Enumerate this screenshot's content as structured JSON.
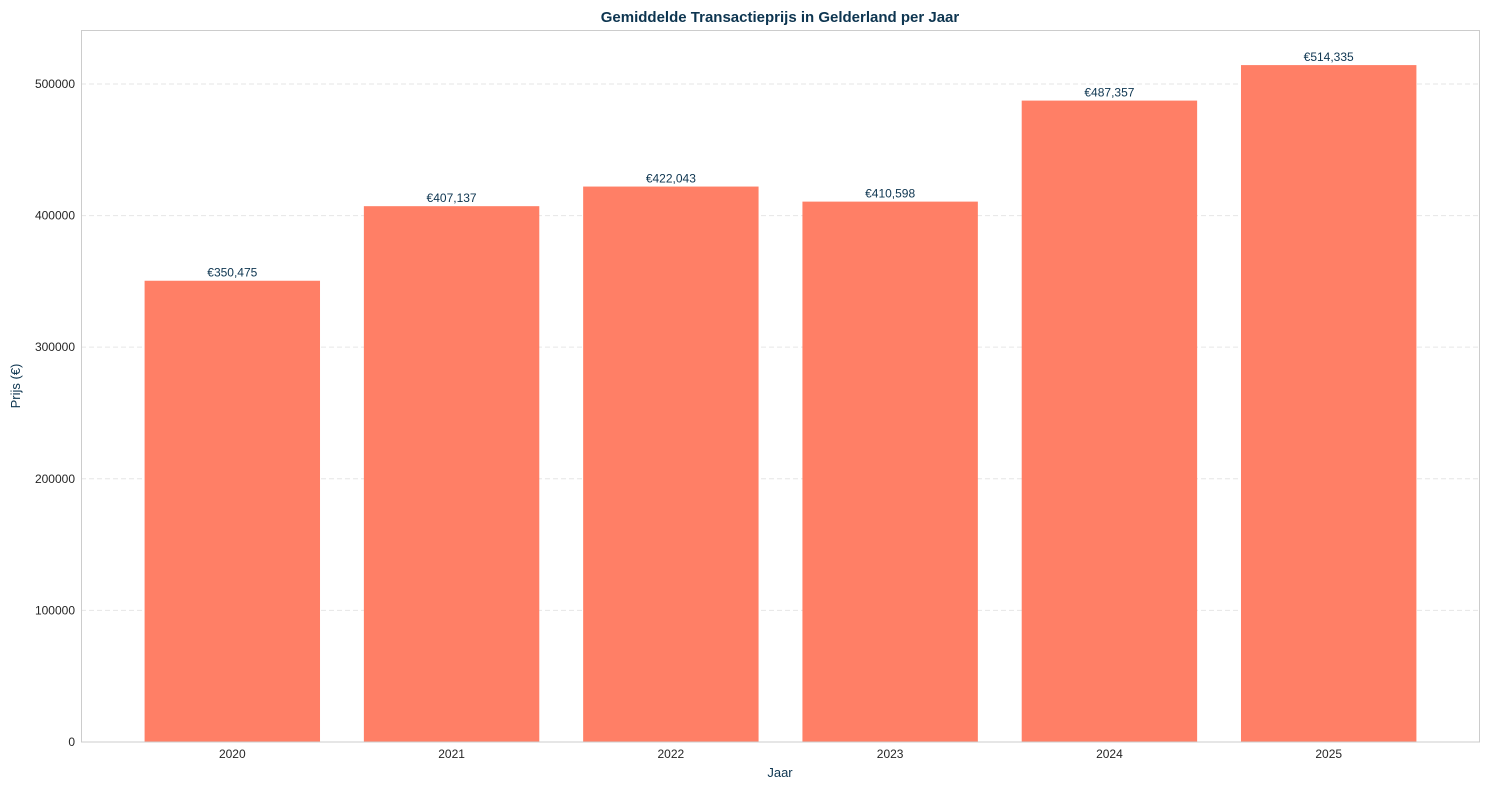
{
  "chart_data": {
    "type": "bar",
    "title": "Gemiddelde Transactieprijs in Gelderland per Jaar",
    "xlabel": "Jaar",
    "ylabel": "Prijs (€)",
    "categories": [
      "2020",
      "2021",
      "2022",
      "2023",
      "2024",
      "2025"
    ],
    "values": [
      350475,
      407137,
      422043,
      410598,
      487357,
      514335
    ],
    "data_labels": [
      "€350,475",
      "€407,137",
      "€422,043",
      "€410,598",
      "€487,357",
      "€514,335"
    ],
    "ylim": [
      0,
      541000
    ],
    "yticks": [
      0,
      100000,
      200000,
      300000,
      400000,
      500000
    ],
    "ytick_labels": [
      "0",
      "100000",
      "200000",
      "300000",
      "400000",
      "500000"
    ],
    "grid": "y-dashed",
    "colors": {
      "bar": "#ff7f66",
      "title": "#0d3550",
      "label": "#0d3550",
      "tick": "#262626",
      "grid": "#e6e6e6",
      "frame": "#cccccc"
    }
  }
}
